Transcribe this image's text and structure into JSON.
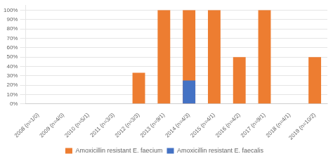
{
  "chart_data": {
    "type": "bar",
    "categories": [
      "2008 (n=1/0)",
      "2009 (n=4/0)",
      "2010 (n=5/1)",
      "2011 (n=3/3)",
      "2012 (n=3/3)",
      "2013 (n=9/1)",
      "2014 (n=4/3)",
      "2015 (n=4/1)",
      "2016 (n=4/2)",
      "2017 (n=9/1)",
      "2018 (n=4/1)",
      "2019 (n=10/2)"
    ],
    "series": [
      {
        "name": "Amoxicillin resistant E. faecium",
        "color": "#ed7d31",
        "values": [
          0,
          0,
          0,
          0,
          33.33,
          100,
          100,
          100,
          50,
          100,
          0,
          50
        ]
      },
      {
        "name": "Amoxicillin resistant E. faecalis",
        "color": "#4472c4",
        "values": [
          0,
          0,
          0,
          0,
          0,
          0,
          25,
          0,
          0,
          0,
          0,
          0
        ]
      }
    ],
    "ylim": [
      0,
      105
    ],
    "yticks": [
      {
        "value": 0,
        "label": "0%"
      },
      {
        "value": 10,
        "label": "10%"
      },
      {
        "value": 20,
        "label": "20%"
      },
      {
        "value": 30,
        "label": "30%"
      },
      {
        "value": 40,
        "label": "40%"
      },
      {
        "value": 50,
        "label": "50%"
      },
      {
        "value": 60,
        "label": "60%"
      },
      {
        "value": 70,
        "label": "70%"
      },
      {
        "value": 80,
        "label": "80%"
      },
      {
        "value": 90,
        "label": "90%"
      },
      {
        "value": 100,
        "label": "100%"
      }
    ],
    "grid": true,
    "legend": "bottom"
  }
}
